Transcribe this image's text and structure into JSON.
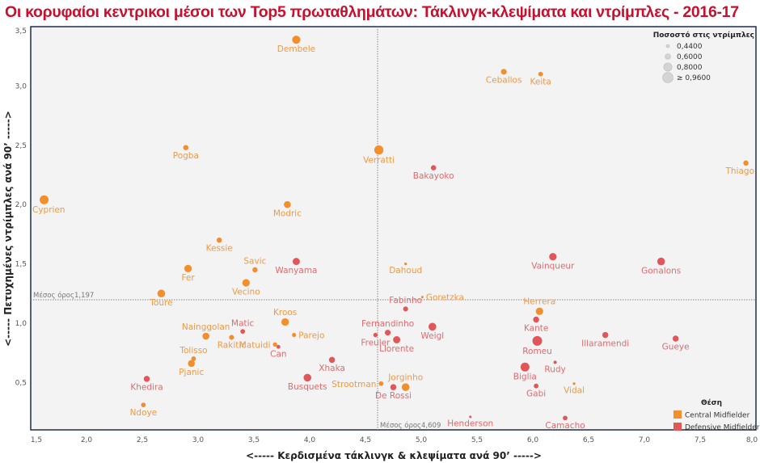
{
  "title": "Οι κορυφαίοι κεντρικοι μέσοι των Top5 πρωταθλημάτων: Τάκλινγκ-κλεψίματα και ντρίμπλες - 2016-17",
  "chart_data": {
    "type": "scatter",
    "title": "Οι κορυφαίοι κεντρικοι μέσοι των Top5 πρωταθλημάτων: Τάκλινγκ-κλεψίματα και ντρίμπλες - 2016-17",
    "xlabel": "<----- Κερδισμένα τάκλινγκ & κλεψίματα ανά 90’ ----->",
    "ylabel": "<----- Πετυχημένες ντρίμπλες ανά 90’ ----->",
    "xlim": [
      1.5,
      8.0
    ],
    "ylim": [
      0.1,
      3.5
    ],
    "x_ticks": [
      1.5,
      2.0,
      2.5,
      3.0,
      3.5,
      4.0,
      4.5,
      5.0,
      5.5,
      6.0,
      6.5,
      7.0,
      7.5,
      8.0
    ],
    "x_tick_labels": [
      "1,5",
      "2,0",
      "2,5",
      "3,0",
      "3,5",
      "4,0",
      "4,5",
      "5,0",
      "5,5",
      "6,0",
      "6,5",
      "7,0",
      "7,5",
      "8,0"
    ],
    "y_ticks": [
      0.5,
      1.0,
      1.5,
      2.0,
      2.5,
      3.0,
      3.5
    ],
    "y_tick_labels": [
      "0,5",
      "1,0",
      "1,5",
      "2,0",
      "2,5",
      "3,0",
      "3,5"
    ],
    "grid": false,
    "reference_lines": {
      "x_mean": 4.609,
      "x_mean_label": "Μέσος όρος4,609",
      "y_mean": 1.197,
      "y_mean_label": "Μέσος όρος1,197"
    },
    "size_legend": {
      "title": "Ποσοστό στις ντρίμπλες",
      "values": [
        0.44,
        0.6,
        0.8,
        0.96
      ],
      "labels": [
        "0,4400",
        "0,6000",
        "0,8000",
        "≥ 0,9600"
      ]
    },
    "color_legend": {
      "title": "Θέση",
      "placement": "bottom-right",
      "items": [
        {
          "name": "Central Midfielder",
          "color": "#F28E2B",
          "label_color": "#EE9A45"
        },
        {
          "name": "Defensive Midfielder",
          "color": "#E15759",
          "label_color": "#E06A6E"
        }
      ]
    },
    "points": [
      {
        "name": "Dembele",
        "x": 3.88,
        "y": 3.39,
        "pos": 0,
        "pct": 0.85,
        "label": "below"
      },
      {
        "name": "Ceballos",
        "x": 5.74,
        "y": 3.12,
        "pos": 0,
        "pct": 0.68,
        "label": "below"
      },
      {
        "name": "Keita",
        "x": 6.07,
        "y": 3.1,
        "pos": 0,
        "pct": 0.6,
        "label": "below"
      },
      {
        "name": "Pogba",
        "x": 2.89,
        "y": 2.48,
        "pos": 0,
        "pct": 0.64,
        "label": "below"
      },
      {
        "name": "Verratti",
        "x": 4.62,
        "y": 2.46,
        "pos": 0,
        "pct": 0.92,
        "label": "below"
      },
      {
        "name": "Bakayoko",
        "x": 5.11,
        "y": 2.31,
        "pos": 1,
        "pct": 0.64,
        "label": "below"
      },
      {
        "name": "Thiago",
        "x": 7.91,
        "y": 2.35,
        "pos": 0,
        "pct": 0.64,
        "label": "below"
      },
      {
        "name": "Cyprien",
        "x": 1.62,
        "y": 2.04,
        "pos": 0,
        "pct": 0.9,
        "label": "below"
      },
      {
        "name": "Modric",
        "x": 3.8,
        "y": 2.0,
        "pos": 0,
        "pct": 0.76,
        "label": "below"
      },
      {
        "name": "Kessie",
        "x": 3.19,
        "y": 1.7,
        "pos": 0,
        "pct": 0.64,
        "label": "below"
      },
      {
        "name": "Savic",
        "x": 3.51,
        "y": 1.45,
        "pos": 0,
        "pct": 0.64,
        "label": "above"
      },
      {
        "name": "Fer",
        "x": 2.91,
        "y": 1.46,
        "pos": 0,
        "pct": 0.8,
        "label": "below"
      },
      {
        "name": "Wanyama",
        "x": 3.88,
        "y": 1.52,
        "pos": 1,
        "pct": 0.78,
        "label": "below"
      },
      {
        "name": "Dahoud",
        "x": 4.86,
        "y": 1.5,
        "pos": 0,
        "pct": 0.46,
        "label": "below"
      },
      {
        "name": "Vainqueur",
        "x": 6.18,
        "y": 1.56,
        "pos": 1,
        "pct": 0.8,
        "label": "below"
      },
      {
        "name": "Gonalons",
        "x": 7.15,
        "y": 1.52,
        "pos": 1,
        "pct": 0.82,
        "label": "below"
      },
      {
        "name": "Vecino",
        "x": 3.43,
        "y": 1.34,
        "pos": 0,
        "pct": 0.8,
        "label": "below"
      },
      {
        "name": "Toure",
        "x": 2.67,
        "y": 1.25,
        "pos": 0,
        "pct": 0.82,
        "label": "below"
      },
      {
        "name": "Goretzka",
        "x": 5.01,
        "y": 1.22,
        "pos": 0,
        "pct": 0.44,
        "label": "right"
      },
      {
        "name": "Fabinho",
        "x": 4.86,
        "y": 1.12,
        "pos": 1,
        "pct": 0.62,
        "label": "above"
      },
      {
        "name": "Herrera",
        "x": 6.06,
        "y": 1.1,
        "pos": 0,
        "pct": 0.8,
        "label": "above"
      },
      {
        "name": "Kante",
        "x": 6.03,
        "y": 1.03,
        "pos": 1,
        "pct": 0.7,
        "label": "below"
      },
      {
        "name": "Kroos",
        "x": 3.78,
        "y": 1.01,
        "pos": 0,
        "pct": 0.8,
        "label": "above"
      },
      {
        "name": "Matic",
        "x": 3.4,
        "y": 0.93,
        "pos": 1,
        "pct": 0.6,
        "label": "above"
      },
      {
        "name": "Nainggolan",
        "x": 3.07,
        "y": 0.89,
        "pos": 0,
        "pct": 0.76,
        "label": "above"
      },
      {
        "name": "Parejo",
        "x": 3.86,
        "y": 0.9,
        "pos": 0,
        "pct": 0.56,
        "label": "right"
      },
      {
        "name": "Rakitic",
        "x": 3.3,
        "y": 0.88,
        "pos": 0,
        "pct": 0.62,
        "label": "below"
      },
      {
        "name": "Matuidi",
        "x": 3.69,
        "y": 0.82,
        "pos": 0,
        "pct": 0.58,
        "label": "left"
      },
      {
        "name": "Can",
        "x": 3.72,
        "y": 0.8,
        "pos": 1,
        "pct": 0.54,
        "label": "below"
      },
      {
        "name": "Fernandinho",
        "x": 4.7,
        "y": 0.92,
        "pos": 1,
        "pct": 0.68,
        "label": "above"
      },
      {
        "name": "Freuler",
        "x": 4.59,
        "y": 0.9,
        "pos": 1,
        "pct": 0.58,
        "label": "below"
      },
      {
        "name": "Llorente",
        "x": 4.78,
        "y": 0.86,
        "pos": 1,
        "pct": 0.78,
        "label": "below"
      },
      {
        "name": "Weigl",
        "x": 5.1,
        "y": 0.97,
        "pos": 1,
        "pct": 0.82,
        "label": "below"
      },
      {
        "name": "Romeu",
        "x": 6.04,
        "y": 0.85,
        "pos": 1,
        "pct": 0.96,
        "label": "below"
      },
      {
        "name": "Illaramendi",
        "x": 6.65,
        "y": 0.9,
        "pos": 1,
        "pct": 0.7,
        "label": "below"
      },
      {
        "name": "Gueye",
        "x": 7.28,
        "y": 0.87,
        "pos": 1,
        "pct": 0.7,
        "label": "below"
      },
      {
        "name": "Tolisso",
        "x": 2.96,
        "y": 0.7,
        "pos": 0,
        "pct": 0.6,
        "label": "above"
      },
      {
        "name": "Pjanic",
        "x": 2.94,
        "y": 0.66,
        "pos": 0,
        "pct": 0.76,
        "label": "below"
      },
      {
        "name": "Xhaka",
        "x": 4.2,
        "y": 0.69,
        "pos": 1,
        "pct": 0.7,
        "label": "below"
      },
      {
        "name": "Rudy",
        "x": 6.2,
        "y": 0.67,
        "pos": 1,
        "pct": 0.5,
        "label": "below"
      },
      {
        "name": "Biglia",
        "x": 5.93,
        "y": 0.63,
        "pos": 1,
        "pct": 0.9,
        "label": "below"
      },
      {
        "name": "Khedira",
        "x": 2.54,
        "y": 0.53,
        "pos": 1,
        "pct": 0.7,
        "label": "below"
      },
      {
        "name": "Busquets",
        "x": 3.98,
        "y": 0.54,
        "pos": 1,
        "pct": 0.82,
        "label": "below"
      },
      {
        "name": "Strootman",
        "x": 4.64,
        "y": 0.49,
        "pos": 0,
        "pct": 0.6,
        "label": "left"
      },
      {
        "name": "De Rossi",
        "x": 4.75,
        "y": 0.46,
        "pos": 1,
        "pct": 0.7,
        "label": "below"
      },
      {
        "name": "Jorginho",
        "x": 4.86,
        "y": 0.46,
        "pos": 0,
        "pct": 0.82,
        "label": "above"
      },
      {
        "name": "Vidal",
        "x": 6.37,
        "y": 0.49,
        "pos": 0,
        "pct": 0.46,
        "label": "below"
      },
      {
        "name": "Gabi",
        "x": 6.03,
        "y": 0.47,
        "pos": 1,
        "pct": 0.6,
        "label": "below"
      },
      {
        "name": "Ndoye",
        "x": 2.51,
        "y": 0.31,
        "pos": 0,
        "pct": 0.6,
        "label": "below"
      },
      {
        "name": "Henderson",
        "x": 5.44,
        "y": 0.21,
        "pos": 1,
        "pct": 0.44,
        "label": "below"
      },
      {
        "name": "Camacho",
        "x": 6.29,
        "y": 0.2,
        "pos": 1,
        "pct": 0.6,
        "label": "below"
      }
    ]
  }
}
